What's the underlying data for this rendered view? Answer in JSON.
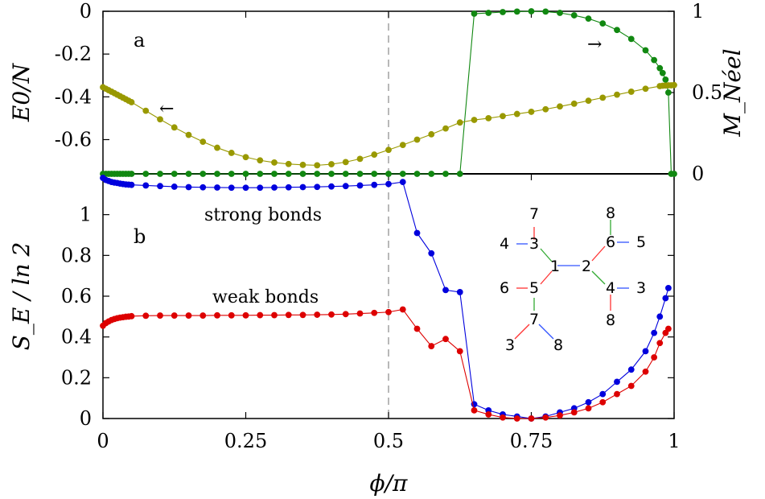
{
  "chart_data": [
    {
      "panel": "a",
      "type": "line",
      "panel_label": "a",
      "xlabel": "ϕ/π",
      "ylabel_left": "E0/N",
      "ylabel_right": "M_Néel",
      "xlim": [
        0,
        1
      ],
      "ylim_left": [
        -0.76,
        0
      ],
      "ylim_right": [
        0,
        1
      ],
      "yticks_left": [
        "0",
        "-0.2",
        "-0.4",
        "-0.6"
      ],
      "yticks_left_values": [
        0,
        -0.2,
        -0.4,
        -0.6
      ],
      "yticks_right": [
        "1",
        "0.5",
        "0"
      ],
      "yticks_right_values": [
        1,
        0.5,
        0
      ],
      "series": [
        {
          "name": "E0/N",
          "axis": "left",
          "color": "#999900",
          "x": [
            0,
            0.005,
            0.01,
            0.015,
            0.02,
            0.025,
            0.03,
            0.035,
            0.04,
            0.045,
            0.05,
            0.075,
            0.1,
            0.125,
            0.15,
            0.175,
            0.2,
            0.225,
            0.25,
            0.275,
            0.3,
            0.325,
            0.35,
            0.375,
            0.4,
            0.425,
            0.45,
            0.475,
            0.5,
            0.525,
            0.55,
            0.575,
            0.6,
            0.625,
            0.65,
            0.675,
            0.7,
            0.725,
            0.75,
            0.775,
            0.8,
            0.825,
            0.85,
            0.875,
            0.9,
            0.925,
            0.95,
            0.975,
            0.98,
            0.985,
            0.99,
            0.995,
            1.0
          ],
          "values": [
            -0.355,
            -0.362,
            -0.369,
            -0.376,
            -0.383,
            -0.39,
            -0.397,
            -0.404,
            -0.411,
            -0.418,
            -0.425,
            -0.465,
            -0.505,
            -0.543,
            -0.578,
            -0.61,
            -0.638,
            -0.662,
            -0.682,
            -0.697,
            -0.707,
            -0.714,
            -0.718,
            -0.72,
            -0.715,
            -0.705,
            -0.69,
            -0.67,
            -0.648,
            -0.625,
            -0.6,
            -0.575,
            -0.548,
            -0.52,
            -0.508,
            -0.5,
            -0.49,
            -0.48,
            -0.47,
            -0.458,
            -0.445,
            -0.432,
            -0.418,
            -0.404,
            -0.39,
            -0.376,
            -0.362,
            -0.35,
            -0.348,
            -0.347,
            -0.346,
            -0.346,
            -0.345
          ]
        },
        {
          "name": "M_Néel",
          "axis": "right",
          "color": "#118811",
          "x": [
            0,
            0.005,
            0.01,
            0.015,
            0.02,
            0.025,
            0.03,
            0.035,
            0.04,
            0.045,
            0.05,
            0.075,
            0.1,
            0.125,
            0.15,
            0.175,
            0.2,
            0.225,
            0.25,
            0.275,
            0.3,
            0.325,
            0.35,
            0.375,
            0.4,
            0.425,
            0.45,
            0.475,
            0.5,
            0.525,
            0.55,
            0.575,
            0.6,
            0.625,
            0.65,
            0.675,
            0.7,
            0.725,
            0.75,
            0.775,
            0.8,
            0.825,
            0.85,
            0.875,
            0.9,
            0.925,
            0.95,
            0.965,
            0.975,
            0.98,
            0.985,
            0.99,
            0.995,
            1.0
          ],
          "values": [
            0,
            0,
            0,
            0,
            0,
            0,
            0,
            0,
            0,
            0,
            0,
            0,
            0,
            0,
            0,
            0,
            0,
            0,
            0,
            0,
            0,
            0,
            0,
            0,
            0,
            0,
            0,
            0,
            0,
            0,
            0,
            0,
            0,
            0,
            0.985,
            0.99,
            0.995,
            0.998,
            1.0,
            0.998,
            0.99,
            0.975,
            0.955,
            0.925,
            0.885,
            0.83,
            0.76,
            0.7,
            0.65,
            0.62,
            0.58,
            0.5,
            0,
            0
          ]
        }
      ],
      "annotations": [
        "←",
        "→"
      ]
    },
    {
      "panel": "b",
      "type": "line",
      "panel_label": "b",
      "xlabel": "ϕ/π",
      "ylabel": "S_E / ln 2",
      "xlim": [
        0,
        1
      ],
      "ylim": [
        0,
        1.2
      ],
      "xticks": [
        "0",
        "0.25",
        "0.5",
        "0.75",
        "1"
      ],
      "xticks_values": [
        0,
        0.25,
        0.5,
        0.75,
        1
      ],
      "yticks": [
        "0",
        "0.2",
        "0.4",
        "0.6",
        "0.8",
        "1"
      ],
      "yticks_values": [
        0,
        0.2,
        0.4,
        0.6,
        0.8,
        1
      ],
      "series": [
        {
          "name": "strong bonds",
          "color": "#0000dd",
          "x": [
            0,
            0.005,
            0.01,
            0.015,
            0.02,
            0.025,
            0.03,
            0.035,
            0.04,
            0.045,
            0.05,
            0.075,
            0.1,
            0.125,
            0.15,
            0.175,
            0.2,
            0.225,
            0.25,
            0.275,
            0.3,
            0.325,
            0.35,
            0.375,
            0.4,
            0.425,
            0.45,
            0.475,
            0.5,
            0.525,
            0.55,
            0.575,
            0.6,
            0.625,
            0.65,
            0.675,
            0.7,
            0.725,
            0.75,
            0.775,
            0.8,
            0.825,
            0.85,
            0.875,
            0.9,
            0.925,
            0.95,
            0.965,
            0.975,
            0.985,
            0.99
          ],
          "values": [
            1.18,
            1.17,
            1.165,
            1.16,
            1.157,
            1.155,
            1.152,
            1.15,
            1.148,
            1.147,
            1.146,
            1.143,
            1.14,
            1.137,
            1.135,
            1.134,
            1.133,
            1.132,
            1.132,
            1.132,
            1.133,
            1.134,
            1.135,
            1.136,
            1.138,
            1.14,
            1.143,
            1.146,
            1.15,
            1.16,
            0.91,
            0.81,
            0.63,
            0.62,
            0.07,
            0.04,
            0.02,
            0.01,
            0.0,
            0.01,
            0.03,
            0.05,
            0.08,
            0.12,
            0.18,
            0.24,
            0.33,
            0.42,
            0.5,
            0.59,
            0.64
          ]
        },
        {
          "name": "weak bonds",
          "color": "#dd0000",
          "x": [
            0,
            0.005,
            0.01,
            0.015,
            0.02,
            0.025,
            0.03,
            0.035,
            0.04,
            0.045,
            0.05,
            0.075,
            0.1,
            0.125,
            0.15,
            0.175,
            0.2,
            0.225,
            0.25,
            0.275,
            0.3,
            0.325,
            0.35,
            0.375,
            0.4,
            0.425,
            0.45,
            0.475,
            0.5,
            0.525,
            0.55,
            0.575,
            0.6,
            0.625,
            0.65,
            0.675,
            0.7,
            0.725,
            0.75,
            0.775,
            0.8,
            0.825,
            0.85,
            0.875,
            0.9,
            0.925,
            0.95,
            0.965,
            0.975,
            0.985,
            0.99
          ],
          "values": [
            0.455,
            0.468,
            0.476,
            0.483,
            0.488,
            0.492,
            0.495,
            0.497,
            0.499,
            0.5,
            0.502,
            0.504,
            0.505,
            0.505,
            0.505,
            0.505,
            0.506,
            0.506,
            0.506,
            0.507,
            0.507,
            0.508,
            0.508,
            0.509,
            0.51,
            0.512,
            0.515,
            0.518,
            0.522,
            0.535,
            0.44,
            0.355,
            0.39,
            0.33,
            0.04,
            0.02,
            0.005,
            0.0,
            0.0,
            0.005,
            0.015,
            0.03,
            0.05,
            0.08,
            0.12,
            0.16,
            0.23,
            0.3,
            0.37,
            0.42,
            0.44
          ]
        }
      ],
      "vline_x": 0.5,
      "annotations": [
        "strong bonds",
        "weak bonds"
      ],
      "inset": {
        "labels": [
          "7",
          "8",
          "4",
          "3",
          "6",
          "5",
          "1",
          "2",
          "6",
          "5",
          "4",
          "3",
          "7",
          "8",
          "3",
          "8"
        ],
        "bond_colors": [
          "#ff3333",
          "#33aa33",
          "#3355ff"
        ]
      }
    }
  ]
}
